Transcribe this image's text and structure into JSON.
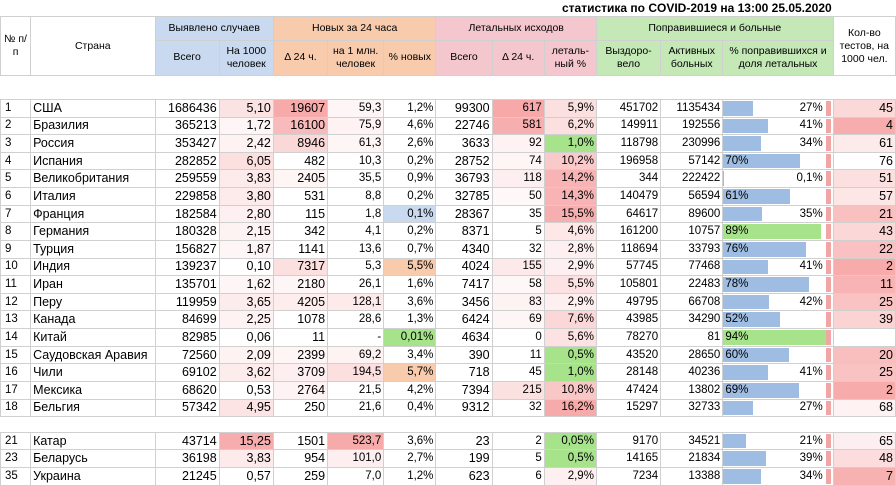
{
  "title": "статистика по COVID-2019 на 13:00 25.05.2020",
  "headers": {
    "num": "№ п/п",
    "country": "Страна",
    "detected": "Выявлено случаев",
    "new24": "Новых за 24 часа",
    "deaths": "Летальных исходов",
    "recovered": "Поправившиеся и больные",
    "tests": "Кол-во тестов, на 1000 чел.",
    "total": "Всего",
    "per1000": "На 1000 человек",
    "d24": "Δ 24 ч.",
    "per1m": "на 1 млн. человек",
    "pct_new": "% новых",
    "death_total": "Всего",
    "death_d24": "Δ 24 ч.",
    "death_pct": "леталь-ный %",
    "recovered_col": "Выздоро-вело",
    "active": "Активных больных",
    "pct_rec": "% поправившихся и доля летальных"
  },
  "colors": {
    "detected_header": "#c9daf0",
    "new_header": "#f8cbad",
    "deaths_header": "#f4c7ce",
    "recovered_header": "#c5e8b7",
    "bar_blue": "#9fbde3",
    "bar_red": "#f1a5a5",
    "bar_green": "#a6e38a"
  },
  "rows": [
    {
      "n": "1",
      "country": "США",
      "total": "1686436",
      "per1000": "5,10",
      "d24": "19607",
      "per1m": "59,3",
      "pct_new": "1,2%",
      "death_total": "99300",
      "death_d24": "617",
      "death_pct": "5,9%",
      "recovered": "451702",
      "active": "1135434",
      "pct_rec": "27%",
      "pct_rec_value": 27,
      "tests": "45"
    },
    {
      "n": "2",
      "country": "Бразилия",
      "total": "365213",
      "per1000": "1,72",
      "d24": "16100",
      "per1m": "75,9",
      "pct_new": "4,6%",
      "death_total": "22746",
      "death_d24": "581",
      "death_pct": "6,2%",
      "recovered": "149911",
      "active": "192556",
      "pct_rec": "41%",
      "pct_rec_value": 41,
      "tests": "4"
    },
    {
      "n": "3",
      "country": "Россия",
      "total": "353427",
      "per1000": "2,42",
      "d24": "8946",
      "per1m": "61,3",
      "pct_new": "2,6%",
      "death_total": "3633",
      "death_d24": "92",
      "death_pct": "1,0%",
      "recovered": "118798",
      "active": "230996",
      "pct_rec": "34%",
      "pct_rec_value": 34,
      "tests": "61"
    },
    {
      "n": "4",
      "country": "Испания",
      "total": "282852",
      "per1000": "6,05",
      "d24": "482",
      "per1m": "10,3",
      "pct_new": "0,2%",
      "death_total": "28752",
      "death_d24": "74",
      "death_pct": "10,2%",
      "recovered": "196958",
      "active": "57142",
      "pct_rec": "70%",
      "pct_rec_value": 70,
      "tests": "76"
    },
    {
      "n": "5",
      "country": "Великобритания",
      "total": "259559",
      "per1000": "3,83",
      "d24": "2405",
      "per1m": "35,5",
      "pct_new": "0,9%",
      "death_total": "36793",
      "death_d24": "118",
      "death_pct": "14,2%",
      "recovered": "344",
      "active": "222422",
      "pct_rec": "0,1%",
      "pct_rec_value": 0.1,
      "tests": "51"
    },
    {
      "n": "6",
      "country": "Италия",
      "total": "229858",
      "per1000": "3,80",
      "d24": "531",
      "per1m": "8,8",
      "pct_new": "0,2%",
      "death_total": "32785",
      "death_d24": "50",
      "death_pct": "14,3%",
      "recovered": "140479",
      "active": "56594",
      "pct_rec": "61%",
      "pct_rec_value": 61,
      "tests": "57"
    },
    {
      "n": "7",
      "country": "Франция",
      "total": "182584",
      "per1000": "2,80",
      "d24": "115",
      "per1m": "1,8",
      "pct_new": "0,1%",
      "death_total": "28367",
      "death_d24": "35",
      "death_pct": "15,5%",
      "recovered": "64617",
      "active": "89600",
      "pct_rec": "35%",
      "pct_rec_value": 35,
      "tests": "21"
    },
    {
      "n": "8",
      "country": "Германия",
      "total": "180328",
      "per1000": "2,15",
      "d24": "342",
      "per1m": "4,1",
      "pct_new": "0,2%",
      "death_total": "8371",
      "death_d24": "5",
      "death_pct": "4,6%",
      "recovered": "161200",
      "active": "10757",
      "pct_rec": "89%",
      "pct_rec_value": 89,
      "tests": "43"
    },
    {
      "n": "9",
      "country": "Турция",
      "total": "156827",
      "per1000": "1,87",
      "d24": "1141",
      "per1m": "13,6",
      "pct_new": "0,7%",
      "death_total": "4340",
      "death_d24": "32",
      "death_pct": "2,8%",
      "recovered": "118694",
      "active": "33793",
      "pct_rec": "76%",
      "pct_rec_value": 76,
      "tests": "22"
    },
    {
      "n": "10",
      "country": "Индия",
      "total": "139237",
      "per1000": "0,10",
      "d24": "7317",
      "per1m": "5,3",
      "pct_new": "5,5%",
      "death_total": "4024",
      "death_d24": "155",
      "death_pct": "2,9%",
      "recovered": "57745",
      "active": "77468",
      "pct_rec": "41%",
      "pct_rec_value": 41,
      "tests": "2"
    },
    {
      "n": "11",
      "country": "Иран",
      "total": "135701",
      "per1000": "1,62",
      "d24": "2180",
      "per1m": "26,1",
      "pct_new": "1,6%",
      "death_total": "7417",
      "death_d24": "58",
      "death_pct": "5,5%",
      "recovered": "105801",
      "active": "22483",
      "pct_rec": "78%",
      "pct_rec_value": 78,
      "tests": "11"
    },
    {
      "n": "12",
      "country": "Перу",
      "total": "119959",
      "per1000": "3,65",
      "d24": "4205",
      "per1m": "128,1",
      "pct_new": "3,6%",
      "death_total": "3456",
      "death_d24": "83",
      "death_pct": "2,9%",
      "recovered": "49795",
      "active": "66708",
      "pct_rec": "42%",
      "pct_rec_value": 42,
      "tests": "25"
    },
    {
      "n": "13",
      "country": "Канада",
      "total": "84699",
      "per1000": "2,25",
      "d24": "1078",
      "per1m": "28,6",
      "pct_new": "1,3%",
      "death_total": "6424",
      "death_d24": "69",
      "death_pct": "7,6%",
      "recovered": "43985",
      "active": "34290",
      "pct_rec": "52%",
      "pct_rec_value": 52,
      "tests": "39"
    },
    {
      "n": "14",
      "country": "Китай",
      "total": "82985",
      "per1000": "0,06",
      "d24": "11",
      "per1m": "-",
      "pct_new": "0,01%",
      "death_total": "4634",
      "death_d24": "0",
      "death_pct": "5,6%",
      "recovered": "78270",
      "active": "81",
      "pct_rec": "94%",
      "pct_rec_value": 94,
      "tests": ""
    },
    {
      "n": "15",
      "country": "Саудовская Аравия",
      "total": "72560",
      "per1000": "2,09",
      "d24": "2399",
      "per1m": "69,2",
      "pct_new": "3,4%",
      "death_total": "390",
      "death_d24": "11",
      "death_pct": "0,5%",
      "recovered": "43520",
      "active": "28650",
      "pct_rec": "60%",
      "pct_rec_value": 60,
      "tests": "20"
    },
    {
      "n": "16",
      "country": "Чили",
      "total": "69102",
      "per1000": "3,62",
      "d24": "3709",
      "per1m": "194,5",
      "pct_new": "5,7%",
      "death_total": "718",
      "death_d24": "45",
      "death_pct": "1,0%",
      "recovered": "28148",
      "active": "40236",
      "pct_rec": "41%",
      "pct_rec_value": 41,
      "tests": "25"
    },
    {
      "n": "17",
      "country": "Мексика",
      "total": "68620",
      "per1000": "0,53",
      "d24": "2764",
      "per1m": "21,5",
      "pct_new": "4,2%",
      "death_total": "7394",
      "death_d24": "215",
      "death_pct": "10,8%",
      "recovered": "47424",
      "active": "13802",
      "pct_rec": "69%",
      "pct_rec_value": 69,
      "tests": "2"
    },
    {
      "n": "18",
      "country": "Бельгия",
      "total": "57342",
      "per1000": "4,95",
      "d24": "250",
      "per1m": "21,6",
      "pct_new": "0,4%",
      "death_total": "9312",
      "death_d24": "32",
      "death_pct": "16,2%",
      "recovered": "15297",
      "active": "32733",
      "pct_rec": "27%",
      "pct_rec_value": 27,
      "tests": "68"
    }
  ],
  "rows2": [
    {
      "n": "21",
      "country": "Катар",
      "total": "43714",
      "per1000": "15,25",
      "d24": "1501",
      "per1m": "523,7",
      "pct_new": "3,6%",
      "death_total": "23",
      "death_d24": "2",
      "death_pct": "0,05%",
      "recovered": "9170",
      "active": "34521",
      "pct_rec": "21%",
      "pct_rec_value": 21,
      "tests": "65"
    },
    {
      "n": "23",
      "country": "Беларусь",
      "total": "36198",
      "per1000": "3,83",
      "d24": "954",
      "per1m": "101,0",
      "pct_new": "2,7%",
      "death_total": "199",
      "death_d24": "5",
      "death_pct": "0,5%",
      "recovered": "14165",
      "active": "21834",
      "pct_rec": "39%",
      "pct_rec_value": 39,
      "tests": "48"
    },
    {
      "n": "35",
      "country": "Украина",
      "total": "21245",
      "per1000": "0,57",
      "d24": "259",
      "per1m": "7,0",
      "pct_new": "1,2%",
      "death_total": "623",
      "death_d24": "6",
      "death_pct": "2,9%",
      "recovered": "7234",
      "active": "13388",
      "pct_rec": "34%",
      "pct_rec_value": 34,
      "tests": "7"
    }
  ]
}
